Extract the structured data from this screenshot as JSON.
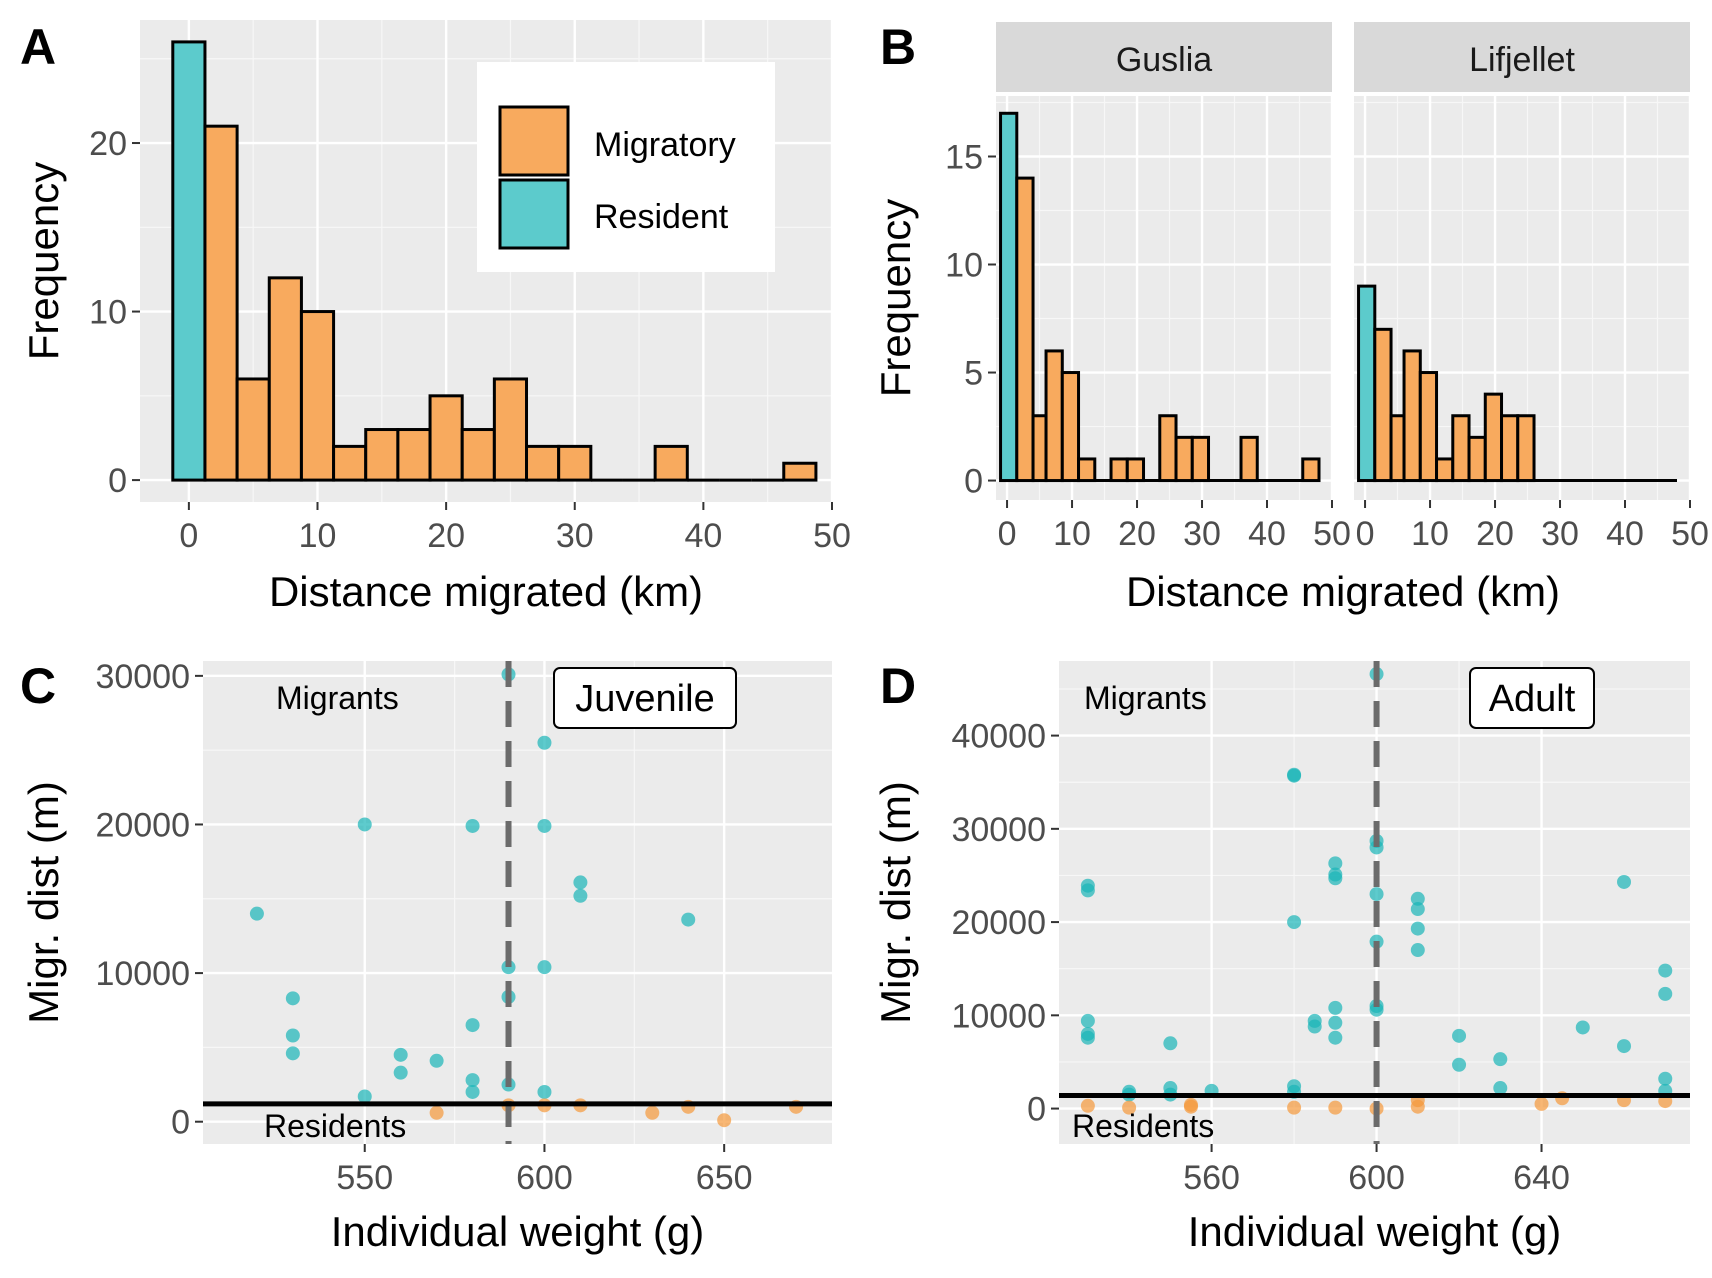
{
  "colors": {
    "migratory": "#f8aa5e",
    "resident": "#5ccbcc",
    "point_migrant": "#1ab5b8",
    "point_resident": "#f5983a"
  },
  "chart_data": [
    {
      "panel": "A",
      "type": "bar",
      "subtype": "histogram",
      "xlabel": "Distance migrated (km)",
      "ylabel": "Frequency",
      "xlim": [
        -3.8,
        50
      ],
      "ylim": [
        -1.3,
        27.3
      ],
      "xticks": [
        0,
        10,
        20,
        30,
        40,
        50
      ],
      "yticks": [
        0,
        10,
        20
      ],
      "legend": {
        "placement": "top-right",
        "entries": [
          "Migratory",
          "Resident"
        ]
      },
      "bins": [
        {
          "x0": -1.25,
          "x1": 1.25,
          "count": 26,
          "group": "Resident"
        },
        {
          "x0": 1.25,
          "x1": 3.75,
          "count": 21,
          "group": "Migratory"
        },
        {
          "x0": 3.75,
          "x1": 6.25,
          "count": 6,
          "group": "Migratory"
        },
        {
          "x0": 6.25,
          "x1": 8.75,
          "count": 12,
          "group": "Migratory"
        },
        {
          "x0": 8.75,
          "x1": 11.25,
          "count": 10,
          "group": "Migratory"
        },
        {
          "x0": 11.25,
          "x1": 13.75,
          "count": 2,
          "group": "Migratory"
        },
        {
          "x0": 13.75,
          "x1": 16.25,
          "count": 3,
          "group": "Migratory"
        },
        {
          "x0": 16.25,
          "x1": 18.75,
          "count": 3,
          "group": "Migratory"
        },
        {
          "x0": 18.75,
          "x1": 21.25,
          "count": 5,
          "group": "Migratory"
        },
        {
          "x0": 21.25,
          "x1": 23.75,
          "count": 3,
          "group": "Migratory"
        },
        {
          "x0": 23.75,
          "x1": 26.25,
          "count": 6,
          "group": "Migratory"
        },
        {
          "x0": 26.25,
          "x1": 28.75,
          "count": 2,
          "group": "Migratory"
        },
        {
          "x0": 28.75,
          "x1": 31.25,
          "count": 2,
          "group": "Migratory"
        },
        {
          "x0": 31.25,
          "x1": 33.75,
          "count": 0,
          "group": "Migratory"
        },
        {
          "x0": 33.75,
          "x1": 36.25,
          "count": 0,
          "group": "Migratory"
        },
        {
          "x0": 36.25,
          "x1": 38.75,
          "count": 2,
          "group": "Migratory"
        },
        {
          "x0": 38.75,
          "x1": 41.25,
          "count": 0,
          "group": "Migratory"
        },
        {
          "x0": 41.25,
          "x1": 43.75,
          "count": 0,
          "group": "Migratory"
        },
        {
          "x0": 43.75,
          "x1": 46.25,
          "count": 0,
          "group": "Migratory"
        },
        {
          "x0": 46.25,
          "x1": 48.75,
          "count": 1,
          "group": "Migratory"
        }
      ]
    },
    {
      "panel": "B",
      "type": "bar",
      "subtype": "faceted histogram",
      "xlabel": "Distance migrated (km)",
      "ylabel": "Frequency",
      "xlim": [
        -1.7,
        50
      ],
      "ylim": [
        -0.9,
        17.8
      ],
      "xticks": [
        0,
        10,
        20,
        30,
        40,
        50
      ],
      "yticks": [
        0,
        5,
        10,
        15
      ],
      "facets": [
        {
          "strip": "Guslia",
          "bins": [
            {
              "x0": -1.0,
              "x1": 1.5,
              "count": 17,
              "group": "Resident"
            },
            {
              "x0": 1.5,
              "x1": 4.0,
              "count": 14,
              "group": "Migratory"
            },
            {
              "x0": 4.0,
              "x1": 6.0,
              "count": 3,
              "group": "Migratory"
            },
            {
              "x0": 6.0,
              "x1": 8.5,
              "count": 6,
              "group": "Migratory"
            },
            {
              "x0": 8.5,
              "x1": 11.0,
              "count": 5,
              "group": "Migratory"
            },
            {
              "x0": 11.0,
              "x1": 13.5,
              "count": 1,
              "group": "Migratory"
            },
            {
              "x0": 13.5,
              "x1": 16.0,
              "count": 0,
              "group": "Migratory"
            },
            {
              "x0": 16.0,
              "x1": 18.5,
              "count": 1,
              "group": "Migratory"
            },
            {
              "x0": 18.5,
              "x1": 21.0,
              "count": 1,
              "group": "Migratory"
            },
            {
              "x0": 21.0,
              "x1": 23.5,
              "count": 0,
              "group": "Migratory"
            },
            {
              "x0": 23.5,
              "x1": 26.0,
              "count": 3,
              "group": "Migratory"
            },
            {
              "x0": 26.0,
              "x1": 28.5,
              "count": 2,
              "group": "Migratory"
            },
            {
              "x0": 28.5,
              "x1": 31.0,
              "count": 2,
              "group": "Migratory"
            },
            {
              "x0": 31.0,
              "x1": 36.0,
              "count": 0,
              "group": "Migratory"
            },
            {
              "x0": 36.0,
              "x1": 38.5,
              "count": 2,
              "group": "Migratory"
            },
            {
              "x0": 38.5,
              "x1": 45.5,
              "count": 0,
              "group": "Migratory"
            },
            {
              "x0": 45.5,
              "x1": 48.0,
              "count": 1,
              "group": "Migratory"
            }
          ]
        },
        {
          "strip": "Lifjellet",
          "bins": [
            {
              "x0": -1.0,
              "x1": 1.5,
              "count": 9,
              "group": "Resident"
            },
            {
              "x0": 1.5,
              "x1": 4.0,
              "count": 7,
              "group": "Migratory"
            },
            {
              "x0": 4.0,
              "x1": 6.0,
              "count": 3,
              "group": "Migratory"
            },
            {
              "x0": 6.0,
              "x1": 8.5,
              "count": 6,
              "group": "Migratory"
            },
            {
              "x0": 8.5,
              "x1": 11.0,
              "count": 5,
              "group": "Migratory"
            },
            {
              "x0": 11.0,
              "x1": 13.5,
              "count": 1,
              "group": "Migratory"
            },
            {
              "x0": 13.5,
              "x1": 16.0,
              "count": 3,
              "group": "Migratory"
            },
            {
              "x0": 16.0,
              "x1": 18.5,
              "count": 2,
              "group": "Migratory"
            },
            {
              "x0": 18.5,
              "x1": 21.0,
              "count": 4,
              "group": "Migratory"
            },
            {
              "x0": 21.0,
              "x1": 23.5,
              "count": 3,
              "group": "Migratory"
            },
            {
              "x0": 23.5,
              "x1": 26.0,
              "count": 3,
              "group": "Migratory"
            },
            {
              "x0": 26.0,
              "x1": 48.0,
              "count": 0,
              "group": "Migratory"
            }
          ]
        }
      ]
    },
    {
      "panel": "C",
      "type": "scatter",
      "xlabel": "Individual weight (g)",
      "ylabel": "Migr. dist (m)",
      "xlim": [
        505,
        680
      ],
      "ylim": [
        -1500,
        31000
      ],
      "xticks": [
        550,
        600,
        650
      ],
      "yticks": [
        0,
        10000,
        20000,
        30000
      ],
      "label_box": "Juvenile",
      "annotations": [
        "Migrants",
        "Residents"
      ],
      "threshold_y": 1200,
      "vline_x": 590,
      "points": [
        {
          "x": 520,
          "y": 14000,
          "group": "Migrant"
        },
        {
          "x": 530,
          "y": 8300,
          "group": "Migrant"
        },
        {
          "x": 530,
          "y": 5800,
          "group": "Migrant"
        },
        {
          "x": 530,
          "y": 4600,
          "group": "Migrant"
        },
        {
          "x": 550,
          "y": 20000,
          "group": "Migrant"
        },
        {
          "x": 550,
          "y": 1700,
          "group": "Migrant"
        },
        {
          "x": 560,
          "y": 4500,
          "group": "Migrant"
        },
        {
          "x": 560,
          "y": 3300,
          "group": "Migrant"
        },
        {
          "x": 570,
          "y": 4100,
          "group": "Migrant"
        },
        {
          "x": 580,
          "y": 19900,
          "group": "Migrant"
        },
        {
          "x": 580,
          "y": 6500,
          "group": "Migrant"
        },
        {
          "x": 580,
          "y": 2800,
          "group": "Migrant"
        },
        {
          "x": 580,
          "y": 2000,
          "group": "Migrant"
        },
        {
          "x": 590,
          "y": 30100,
          "group": "Migrant"
        },
        {
          "x": 590,
          "y": 10400,
          "group": "Migrant"
        },
        {
          "x": 590,
          "y": 8400,
          "group": "Migrant"
        },
        {
          "x": 590,
          "y": 2500,
          "group": "Migrant"
        },
        {
          "x": 600,
          "y": 25500,
          "group": "Migrant"
        },
        {
          "x": 600,
          "y": 19900,
          "group": "Migrant"
        },
        {
          "x": 600,
          "y": 10400,
          "group": "Migrant"
        },
        {
          "x": 600,
          "y": 2000,
          "group": "Migrant"
        },
        {
          "x": 610,
          "y": 16100,
          "group": "Migrant"
        },
        {
          "x": 610,
          "y": 15200,
          "group": "Migrant"
        },
        {
          "x": 640,
          "y": 13600,
          "group": "Migrant"
        },
        {
          "x": 570,
          "y": 600,
          "group": "Resident"
        },
        {
          "x": 590,
          "y": 1100,
          "group": "Resident"
        },
        {
          "x": 600,
          "y": 1100,
          "group": "Resident"
        },
        {
          "x": 610,
          "y": 1100,
          "group": "Resident"
        },
        {
          "x": 630,
          "y": 600,
          "group": "Resident"
        },
        {
          "x": 640,
          "y": 1000,
          "group": "Resident"
        },
        {
          "x": 650,
          "y": 100,
          "group": "Resident"
        },
        {
          "x": 670,
          "y": 1000,
          "group": "Resident"
        }
      ]
    },
    {
      "panel": "D",
      "type": "scatter",
      "xlabel": "Individual weight (g)",
      "ylabel": "Migr. dist (m)",
      "xlim": [
        523,
        676
      ],
      "ylim": [
        -3800,
        48000
      ],
      "xticks": [
        560,
        600,
        640
      ],
      "yticks": [
        0,
        10000,
        20000,
        30000,
        40000
      ],
      "label_box": "Adult",
      "annotations": [
        "Migrants",
        "Residents"
      ],
      "threshold_y": 1400,
      "vline_x": 600,
      "points": [
        {
          "x": 530,
          "y": 23900,
          "group": "Migrant"
        },
        {
          "x": 530,
          "y": 23400,
          "group": "Migrant"
        },
        {
          "x": 530,
          "y": 9400,
          "group": "Migrant"
        },
        {
          "x": 530,
          "y": 8000,
          "group": "Migrant"
        },
        {
          "x": 530,
          "y": 7600,
          "group": "Migrant"
        },
        {
          "x": 540,
          "y": 1800,
          "group": "Migrant"
        },
        {
          "x": 540,
          "y": 1500,
          "group": "Migrant"
        },
        {
          "x": 550,
          "y": 7000,
          "group": "Migrant"
        },
        {
          "x": 550,
          "y": 2200,
          "group": "Migrant"
        },
        {
          "x": 550,
          "y": 1500,
          "group": "Migrant"
        },
        {
          "x": 560,
          "y": 1900,
          "group": "Migrant"
        },
        {
          "x": 580,
          "y": 35800,
          "group": "Migrant"
        },
        {
          "x": 580,
          "y": 35700,
          "group": "Migrant"
        },
        {
          "x": 580,
          "y": 20000,
          "group": "Migrant"
        },
        {
          "x": 580,
          "y": 2400,
          "group": "Migrant"
        },
        {
          "x": 580,
          "y": 1800,
          "group": "Migrant"
        },
        {
          "x": 585,
          "y": 9400,
          "group": "Migrant"
        },
        {
          "x": 585,
          "y": 8800,
          "group": "Migrant"
        },
        {
          "x": 590,
          "y": 26300,
          "group": "Migrant"
        },
        {
          "x": 590,
          "y": 25100,
          "group": "Migrant"
        },
        {
          "x": 590,
          "y": 24700,
          "group": "Migrant"
        },
        {
          "x": 590,
          "y": 10800,
          "group": "Migrant"
        },
        {
          "x": 590,
          "y": 9200,
          "group": "Migrant"
        },
        {
          "x": 590,
          "y": 7600,
          "group": "Migrant"
        },
        {
          "x": 600,
          "y": 46600,
          "group": "Migrant"
        },
        {
          "x": 600,
          "y": 28700,
          "group": "Migrant"
        },
        {
          "x": 600,
          "y": 28000,
          "group": "Migrant"
        },
        {
          "x": 600,
          "y": 23000,
          "group": "Migrant"
        },
        {
          "x": 600,
          "y": 17900,
          "group": "Migrant"
        },
        {
          "x": 600,
          "y": 11000,
          "group": "Migrant"
        },
        {
          "x": 600,
          "y": 10600,
          "group": "Migrant"
        },
        {
          "x": 610,
          "y": 22500,
          "group": "Migrant"
        },
        {
          "x": 610,
          "y": 21400,
          "group": "Migrant"
        },
        {
          "x": 610,
          "y": 19300,
          "group": "Migrant"
        },
        {
          "x": 610,
          "y": 17000,
          "group": "Migrant"
        },
        {
          "x": 620,
          "y": 7800,
          "group": "Migrant"
        },
        {
          "x": 620,
          "y": 4700,
          "group": "Migrant"
        },
        {
          "x": 630,
          "y": 5300,
          "group": "Migrant"
        },
        {
          "x": 630,
          "y": 2200,
          "group": "Migrant"
        },
        {
          "x": 650,
          "y": 8700,
          "group": "Migrant"
        },
        {
          "x": 660,
          "y": 24300,
          "group": "Migrant"
        },
        {
          "x": 660,
          "y": 6700,
          "group": "Migrant"
        },
        {
          "x": 670,
          "y": 14800,
          "group": "Migrant"
        },
        {
          "x": 670,
          "y": 12300,
          "group": "Migrant"
        },
        {
          "x": 670,
          "y": 3200,
          "group": "Migrant"
        },
        {
          "x": 670,
          "y": 1900,
          "group": "Migrant"
        },
        {
          "x": 530,
          "y": 300,
          "group": "Resident"
        },
        {
          "x": 540,
          "y": 100,
          "group": "Resident"
        },
        {
          "x": 555,
          "y": 400,
          "group": "Resident"
        },
        {
          "x": 555,
          "y": 200,
          "group": "Resident"
        },
        {
          "x": 580,
          "y": 100,
          "group": "Resident"
        },
        {
          "x": 590,
          "y": 100,
          "group": "Resident"
        },
        {
          "x": 600,
          "y": 0,
          "group": "Resident"
        },
        {
          "x": 610,
          "y": 900,
          "group": "Resident"
        },
        {
          "x": 610,
          "y": 200,
          "group": "Resident"
        },
        {
          "x": 640,
          "y": 500,
          "group": "Resident"
        },
        {
          "x": 645,
          "y": 1100,
          "group": "Resident"
        },
        {
          "x": 660,
          "y": 900,
          "group": "Resident"
        },
        {
          "x": 670,
          "y": 800,
          "group": "Resident"
        }
      ]
    }
  ]
}
